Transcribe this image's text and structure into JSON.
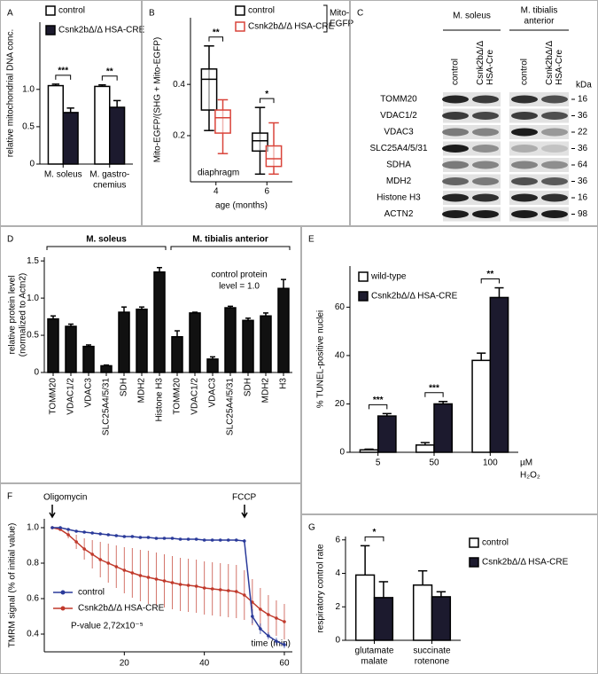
{
  "chart_data": [
    {
      "panel": "A",
      "type": "bar",
      "ylabel": "relative mitochondrial DNA conc.",
      "categories": [
        [
          "M. soleus"
        ],
        [
          "M. gastro-",
          "cnemius"
        ]
      ],
      "series": [
        {
          "name": "control",
          "color": "#ffffff",
          "values": [
            1.05,
            1.04
          ],
          "errors": [
            0.02,
            0.02
          ]
        },
        {
          "name": "Csnk2bΔ/Δ HSA-CRE",
          "color": "#1c1a2e",
          "values": [
            0.69,
            0.76
          ],
          "errors": [
            0.06,
            0.09
          ]
        }
      ],
      "ylim": [
        0,
        1.9
      ],
      "yticks": [
        0,
        0.5,
        {
          "value": 1,
          "label": "1.0"
        }
      ],
      "significance": [
        "***",
        "**"
      ]
    },
    {
      "panel": "B",
      "type": "box",
      "ylabel": "Mito-EGFP/(SHG + Mito-EGFP)",
      "xlabel": "age (months)",
      "categories": [
        "4",
        "6"
      ],
      "series": [
        {
          "name": "control",
          "color": "#000000",
          "boxes": [
            [
              0.22,
              0.3,
              0.42,
              0.46,
              0.55
            ],
            [
              0.05,
              0.14,
              0.18,
              0.21,
              0.31
            ]
          ]
        },
        {
          "name": "Csnk2bΔ/Δ HSA-CRE",
          "color": "#d9443a",
          "boxes": [
            [
              0.13,
              0.21,
              0.27,
              0.3,
              0.34
            ],
            [
              0.05,
              0.08,
              0.11,
              0.16,
              0.25
            ]
          ]
        }
      ],
      "ylim": [
        0.02,
        0.66
      ],
      "yticks": [
        0.2,
        0.4
      ],
      "significance": [
        "**",
        "*"
      ],
      "legend_group": [
        "Mito-",
        "EGFP"
      ],
      "annotations": [
        "diaphragm"
      ]
    },
    {
      "panel": "C",
      "type": "blot",
      "groups": [
        [
          "M. soleus"
        ],
        [
          "M. tibialis",
          "anterior"
        ]
      ],
      "lanes": [
        [
          "control"
        ],
        [
          "Csnk2bΔ/Δ",
          "HSA-Cre"
        ],
        [
          "control"
        ],
        [
          "Csnk2bΔ/Δ",
          "HSA-Cre"
        ]
      ],
      "unit": "kDa",
      "rows": [
        {
          "name": "TOMM20",
          "kda": 16
        },
        {
          "name": "VDAC1/2",
          "kda": 36
        },
        {
          "name": "VDAC3",
          "kda": 22
        },
        {
          "name": "SLC25A4/5/31",
          "kda": 36
        },
        {
          "name": "SDHA",
          "kda": 64
        },
        {
          "name": "MDH2",
          "kda": 36
        },
        {
          "name": "Histone H3",
          "kda": 16
        },
        {
          "name": "ACTN2",
          "kda": 98
        }
      ]
    },
    {
      "panel": "D",
      "type": "bar",
      "ylabel": [
        "relative protein level",
        "(normalized to Actn2)"
      ],
      "groups": [
        "M. soleus",
        "M. tibialis anterior"
      ],
      "categories": [
        "TOMM20",
        "VDAC1/2",
        "VDAC3",
        "SLC25A4/5/31",
        "SDH",
        "MDH2",
        "Histone H3",
        "TOMM20",
        "VDAC1/2",
        "VDAC3",
        "SLC25A4/5/31",
        "SDH",
        "MDH2",
        "H3"
      ],
      "values": [
        0.72,
        0.62,
        0.35,
        0.09,
        0.81,
        0.85,
        1.35,
        0.48,
        0.8,
        0.18,
        0.87,
        0.7,
        0.76,
        1.13
      ],
      "errors": [
        0.04,
        0.03,
        0.02,
        0.01,
        0.07,
        0.03,
        0.06,
        0.08,
        0.01,
        0.03,
        0.02,
        0.03,
        0.04,
        0.12
      ],
      "color": "#111111",
      "ylim": [
        0,
        1.55
      ],
      "yticks": [
        0,
        0.5,
        {
          "value": 1,
          "label": "1.0"
        },
        1.5
      ],
      "annotations": [
        "control protein",
        "level = 1.0"
      ]
    },
    {
      "panel": "E",
      "type": "bar",
      "ylabel": "% TUNEL-positive nuclei",
      "xlabel": [
        "µM",
        "H₂O₂"
      ],
      "categories": [
        "5",
        "50",
        "100"
      ],
      "series": [
        {
          "name": "wild-type",
          "color": "#ffffff",
          "values": [
            1,
            3,
            38
          ],
          "errors": [
            0.3,
            1,
            3
          ]
        },
        {
          "name": "Csnk2bΔ/Δ HSA-CRE",
          "color": "#1c1a2e",
          "values": [
            15,
            20,
            64
          ],
          "errors": [
            1,
            1,
            4
          ]
        }
      ],
      "ylim": [
        0,
        77
      ],
      "yticks": [
        0,
        20,
        40,
        60
      ],
      "significance": [
        "***",
        "***",
        "**"
      ]
    },
    {
      "panel": "F",
      "type": "line",
      "ylabel": "TMRM signal (% of initial value)",
      "xlabel": "time (min)",
      "x": [
        2,
        4,
        6,
        8,
        10,
        12,
        14,
        16,
        18,
        20,
        22,
        24,
        26,
        28,
        30,
        32,
        34,
        36,
        38,
        40,
        42,
        44,
        46,
        48,
        50,
        52,
        54,
        56,
        58,
        60
      ],
      "series": [
        {
          "name": "control",
          "color": "#2a3a9a",
          "values": [
            1.0,
            1.0,
            0.99,
            0.98,
            0.975,
            0.97,
            0.965,
            0.96,
            0.955,
            0.95,
            0.95,
            0.945,
            0.945,
            0.94,
            0.94,
            0.94,
            0.935,
            0.935,
            0.935,
            0.93,
            0.93,
            0.93,
            0.93,
            0.93,
            0.925,
            0.5,
            0.43,
            0.39,
            0.36,
            0.34
          ],
          "errors": [
            0.005,
            0.005,
            0.005,
            0.005,
            0.005,
            0.005,
            0.005,
            0.005,
            0.005,
            0.005,
            0.005,
            0.005,
            0.005,
            0.005,
            0.005,
            0.005,
            0.005,
            0.005,
            0.005,
            0.005,
            0.005,
            0.005,
            0.005,
            0.005,
            0.01,
            0.04,
            0.03,
            0.02,
            0.02,
            0.02
          ]
        },
        {
          "name": "Csnk2bΔ/Δ HSA-CRE",
          "color": "#c0392b",
          "values": [
            1.0,
            0.99,
            0.96,
            0.92,
            0.88,
            0.85,
            0.82,
            0.8,
            0.78,
            0.76,
            0.745,
            0.73,
            0.72,
            0.71,
            0.7,
            0.69,
            0.68,
            0.675,
            0.67,
            0.66,
            0.655,
            0.65,
            0.645,
            0.64,
            0.62,
            0.58,
            0.54,
            0.51,
            0.49,
            0.47
          ],
          "errors": [
            0.005,
            0.005,
            0.02,
            0.04,
            0.06,
            0.08,
            0.1,
            0.11,
            0.12,
            0.13,
            0.14,
            0.145,
            0.15,
            0.15,
            0.15,
            0.15,
            0.15,
            0.15,
            0.15,
            0.15,
            0.15,
            0.15,
            0.15,
            0.15,
            0.14,
            0.13,
            0.12,
            0.11,
            0.1,
            0.1
          ]
        }
      ],
      "xlim": [
        0,
        62
      ],
      "xticks": [
        20,
        40,
        60
      ],
      "ylim": [
        0.3,
        1.05
      ],
      "yticks": [
        0.4,
        0.6,
        0.8,
        {
          "value": 1,
          "label": "1.0"
        }
      ],
      "annotations": [
        "Oligomycin",
        "FCCP",
        "P-value 2,72x10⁻⁵"
      ]
    },
    {
      "panel": "G",
      "type": "bar",
      "ylabel": "respiratory control rate",
      "categories": [
        [
          "glutamate",
          "malate"
        ],
        [
          "succinate",
          "rotenone"
        ]
      ],
      "series": [
        {
          "name": "control",
          "color": "#ffffff",
          "values": [
            3.9,
            3.3
          ],
          "errors": [
            1.75,
            0.85
          ]
        },
        {
          "name": "Csnk2bΔ/Δ HSA-CRE",
          "color": "#1c1a2e",
          "values": [
            2.55,
            2.6
          ],
          "errors": [
            0.95,
            0.3
          ]
        }
      ],
      "ylim": [
        0,
        6.2
      ],
      "yticks": [
        0,
        2,
        4,
        6
      ],
      "significance": [
        "*"
      ]
    }
  ]
}
